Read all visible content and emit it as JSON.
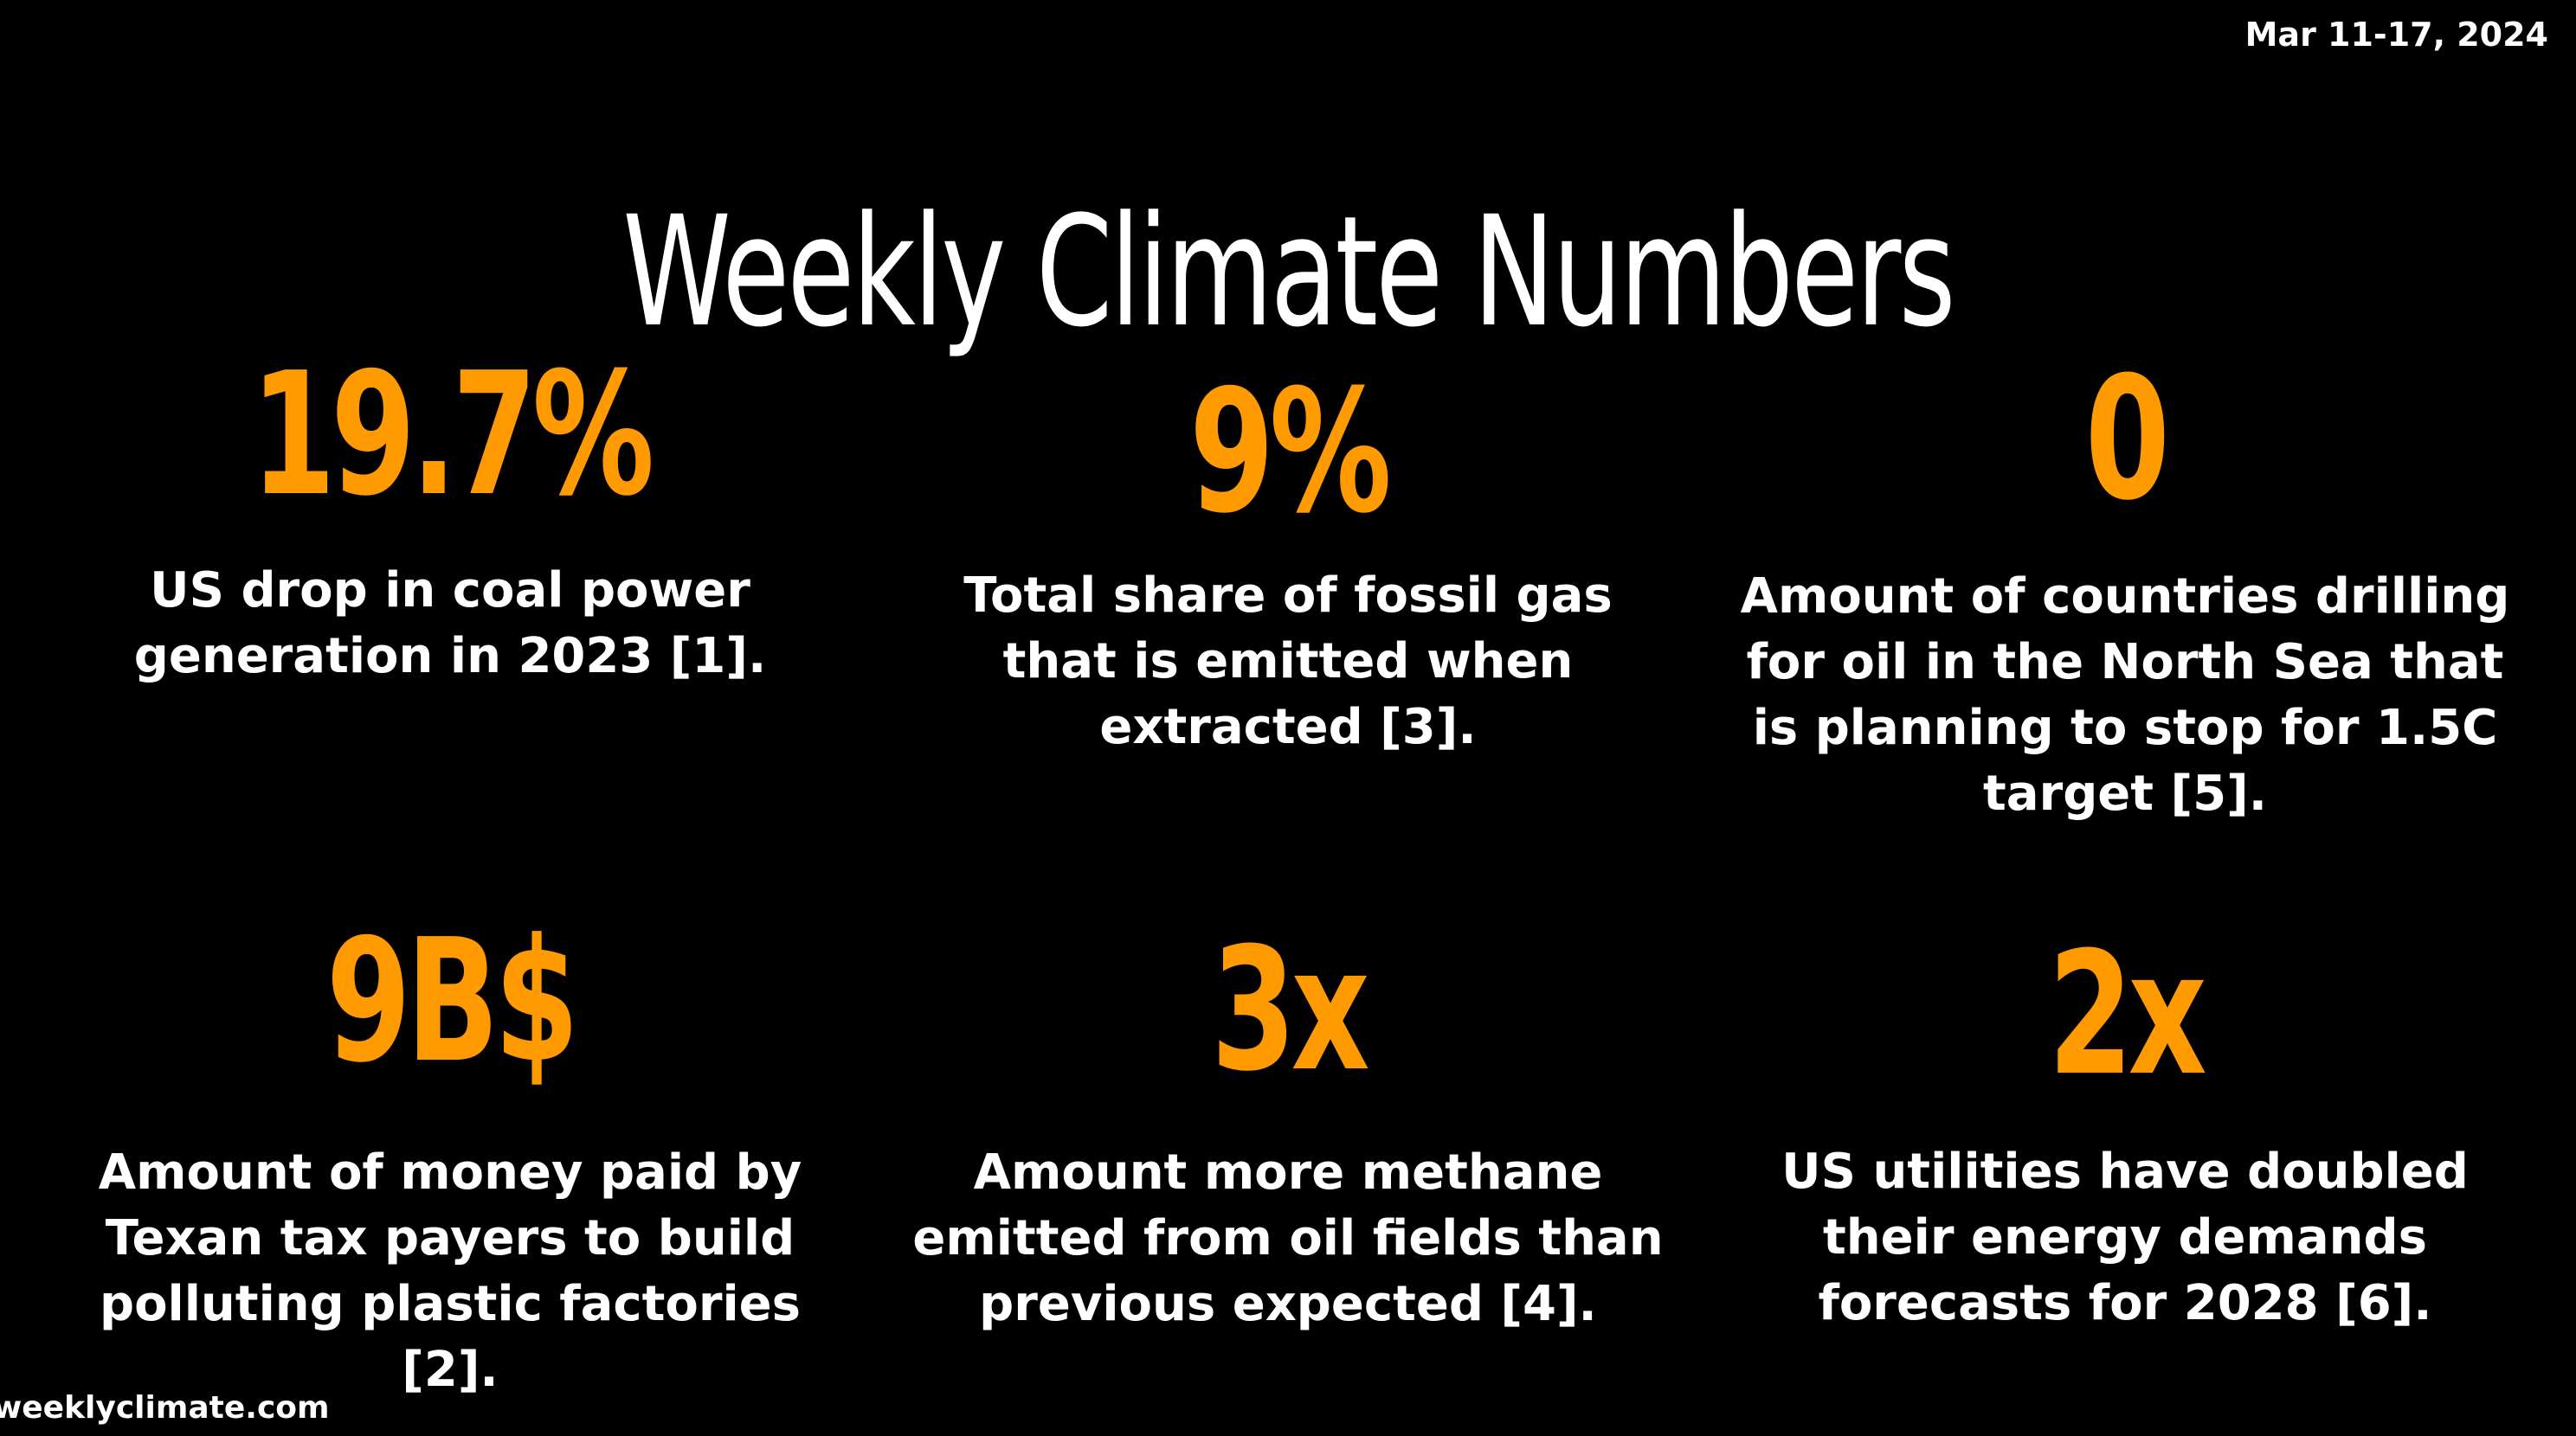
{
  "date_range": "Mar 11-17, 2024",
  "title": "Weekly Climate Numbers",
  "colors": {
    "background": "#000000",
    "accent": "#ff9a00",
    "text": "#ffffff"
  },
  "stats": [
    {
      "value": "19.7%",
      "description": "US drop in coal power generation in 2023 [1]."
    },
    {
      "value": "9%",
      "description": "Total share of fossil gas that is emitted when extracted [3]."
    },
    {
      "value": "0",
      "description": "Amount of countries drilling for oil in the North Sea that is planning to stop for 1.5C target [5]."
    },
    {
      "value": "9B$",
      "description": "Amount of money paid by Texan tax payers to build polluting plastic factories [2]."
    },
    {
      "value": "3x",
      "description": "Amount more methane emitted from oil fields than previous expected [4]."
    },
    {
      "value": "2x",
      "description": "US utilities have doubled their energy demands forecasts for 2028 [6]."
    }
  ],
  "footer": {
    "website": "weeklyclimate.com"
  }
}
